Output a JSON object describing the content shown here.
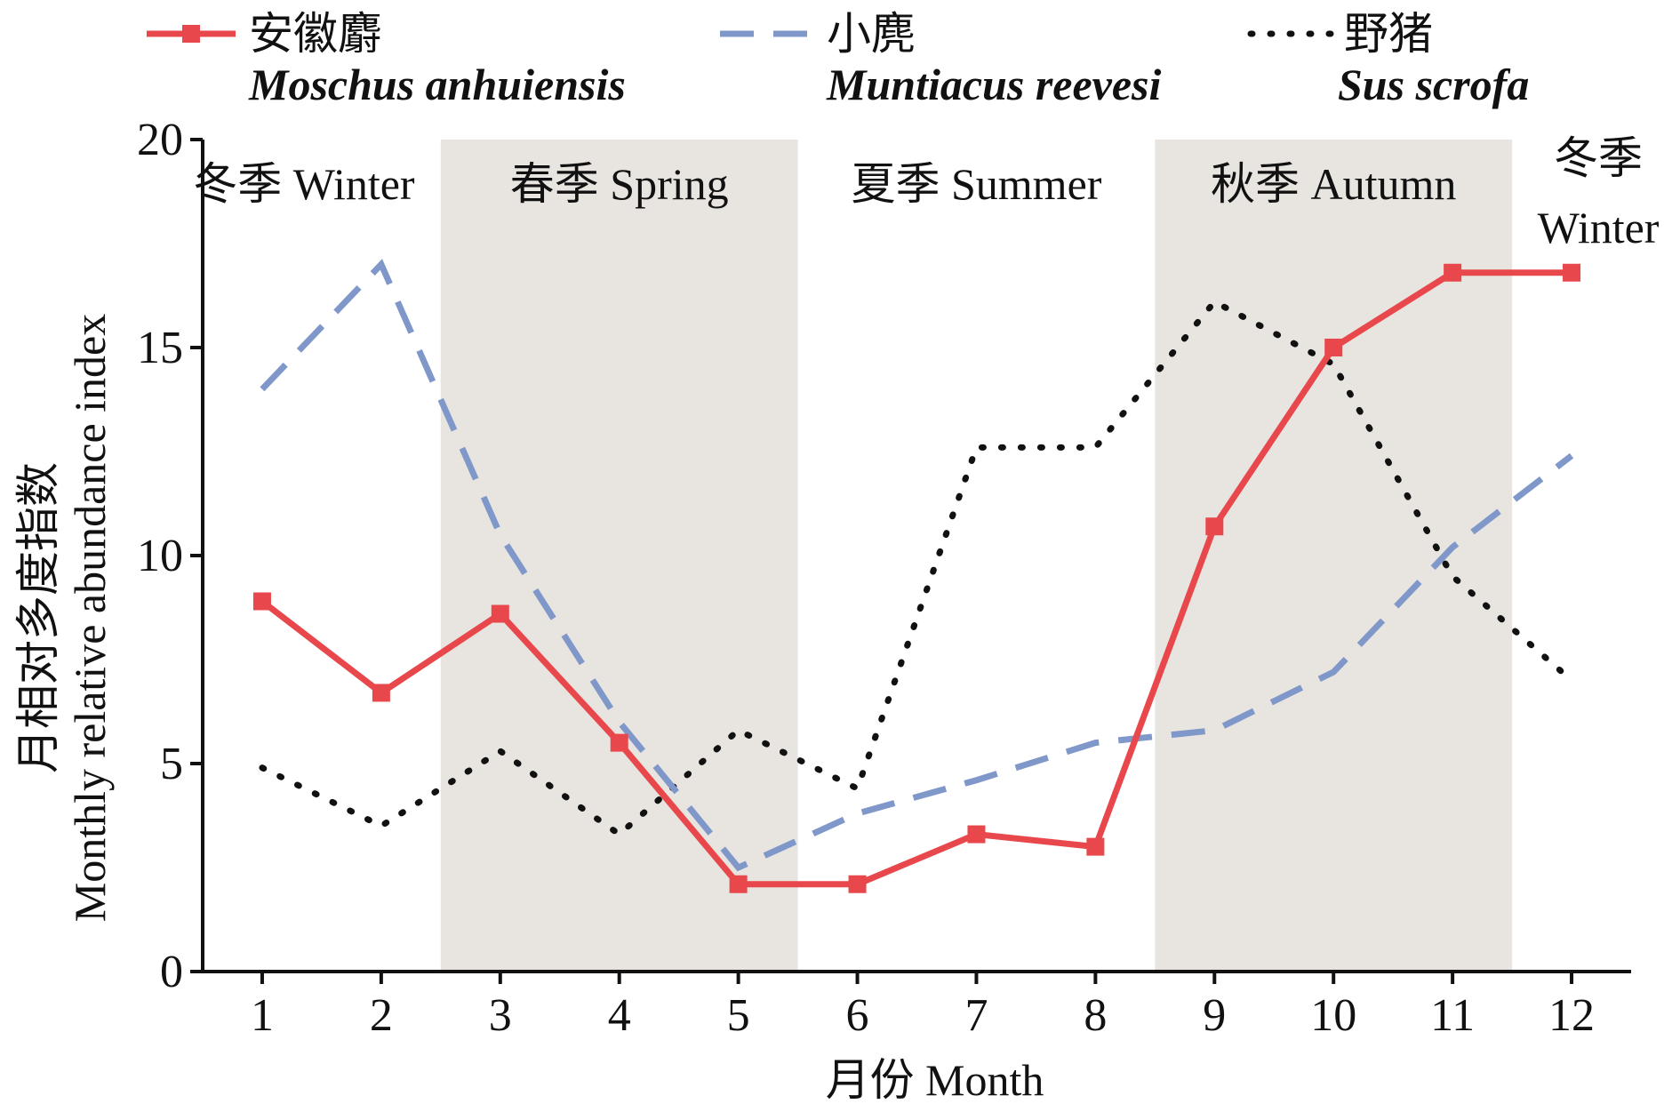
{
  "chart_data": {
    "type": "line",
    "x": [
      1,
      2,
      3,
      4,
      5,
      6,
      7,
      8,
      9,
      10,
      11,
      12
    ],
    "xlabel": "月份 Month",
    "ylabel_cn": "月相对多度指数",
    "ylabel_en": "Monthly relative abundance index",
    "ylim": [
      0,
      20
    ],
    "xlim": [
      0.5,
      12.5
    ],
    "yticks": [
      "0",
      "5",
      "10",
      "15",
      "20"
    ],
    "xticks": [
      "1",
      "2",
      "3",
      "4",
      "5",
      "6",
      "7",
      "8",
      "9",
      "10",
      "11",
      "12"
    ],
    "grid": false,
    "legend_position": "top",
    "series": [
      {
        "name": "安徽麝",
        "latin": "Moschus anhuiensis",
        "style": "solid-square",
        "color": "#e8484b",
        "values": [
          8.9,
          6.7,
          8.6,
          5.5,
          2.1,
          2.1,
          3.3,
          3.0,
          10.7,
          15.0,
          16.8,
          16.8
        ]
      },
      {
        "name": "小麂",
        "latin": "Muntiacus reevesi",
        "style": "dashed",
        "color": "#7f98c9",
        "values": [
          14.0,
          17.0,
          10.5,
          6.0,
          2.5,
          3.8,
          4.6,
          5.5,
          5.8,
          7.2,
          10.2,
          12.4
        ]
      },
      {
        "name": "野猪",
        "latin": "Sus scrofa",
        "style": "dotted",
        "color": "#111111",
        "values": [
          4.9,
          3.5,
          5.3,
          3.3,
          5.8,
          4.4,
          12.6,
          12.6,
          16.1,
          14.6,
          9.5,
          7.0
        ]
      }
    ],
    "seasons": [
      {
        "label": "冬季 Winter",
        "x_start": 0.5,
        "x_end": 2.5,
        "shaded": false
      },
      {
        "label": "春季 Spring",
        "x_start": 2.5,
        "x_end": 5.5,
        "shaded": true
      },
      {
        "label": "夏季 Summer",
        "x_start": 5.5,
        "x_end": 8.5,
        "shaded": false
      },
      {
        "label": "秋季 Autumn",
        "x_start": 8.5,
        "x_end": 11.5,
        "shaded": true
      },
      {
        "label_line1": "冬季",
        "label_line2": "Winter",
        "x_start": 11.5,
        "x_end": 12.5,
        "shaded": false
      }
    ],
    "shade_color": "#e8e4e0"
  }
}
